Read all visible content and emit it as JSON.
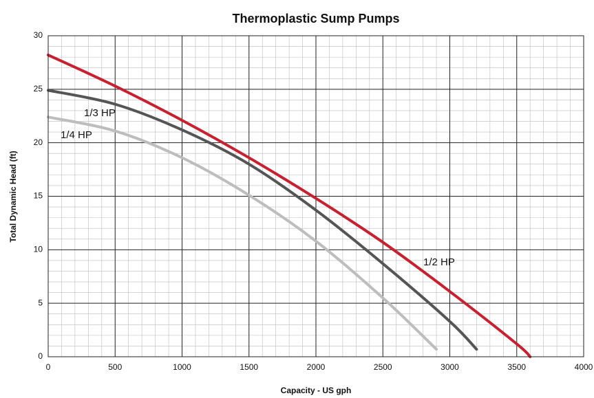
{
  "chart_data": {
    "type": "line",
    "title": "Thermoplastic Sump Pumps",
    "x_label": "Capacity - US gph",
    "y_label": "Total Dynamic Head (ft)",
    "series": [
      {
        "name": "1/2 HP",
        "color": "#c8202f",
        "x": [
          0,
          500,
          1000,
          1500,
          2000,
          2500,
          3000,
          3500,
          3600
        ],
        "values": [
          28.2,
          25.3,
          22.1,
          18.6,
          14.8,
          10.7,
          6.1,
          1.2,
          0
        ]
      },
      {
        "name": "1/3 HP",
        "color": "#555555",
        "x": [
          0,
          500,
          1000,
          1500,
          2000,
          2500,
          3000,
          3200
        ],
        "values": [
          24.9,
          23.6,
          21.2,
          18.0,
          13.7,
          8.7,
          3.3,
          0.7
        ]
      },
      {
        "name": "1/4 HP",
        "color": "#bdbdbd",
        "x": [
          0,
          500,
          1000,
          1500,
          2000,
          2500,
          2900
        ],
        "values": [
          22.4,
          21.1,
          18.6,
          15.1,
          10.8,
          5.5,
          0.7
        ]
      }
    ],
    "xlim": [
      0,
      4000
    ],
    "xticks": [
      0,
      500,
      1000,
      1500,
      2000,
      2500,
      3000,
      3500,
      4000
    ],
    "ylim": [
      0,
      30
    ],
    "yticks": [
      0,
      5,
      10,
      15,
      20,
      25,
      30
    ],
    "grid": true,
    "minor_grid": {
      "x": 100,
      "y": 1
    }
  }
}
